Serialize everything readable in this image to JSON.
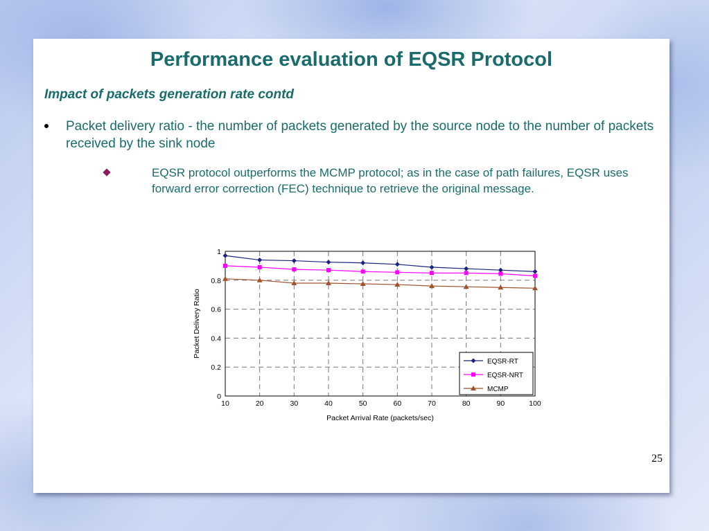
{
  "slide": {
    "title": "Performance evaluation of EQSR Protocol",
    "subtitle": "Impact of packets generation rate contd",
    "bullet": "Packet delivery ratio - the number of packets generated by the source node to the number of packets received by the sink node",
    "sub_bullet": "EQSR protocol outperforms the MCMP protocol; as in the case of path failures, EQSR uses forward error correction (FEC) technique to retrieve the original message.",
    "page_number": "25"
  },
  "chart_data": {
    "type": "line",
    "title": "",
    "xlabel": "Packet Arrival Rate (packets/sec)",
    "ylabel": "Packet Delivery Ratio",
    "x": [
      10,
      20,
      30,
      40,
      50,
      60,
      70,
      80,
      90,
      100
    ],
    "xlim": [
      10,
      100
    ],
    "ylim": [
      0,
      1
    ],
    "yticks": [
      "0",
      "0.2",
      "0.4",
      "0.6",
      "0.8",
      "1"
    ],
    "xticks": [
      "10",
      "20",
      "30",
      "40",
      "50",
      "60",
      "70",
      "80",
      "90",
      "100"
    ],
    "grid": true,
    "legend_position": "bottom-right",
    "series": [
      {
        "name": "EQSR-RT",
        "color": "#1a237e",
        "marker": "diamond",
        "values": [
          0.97,
          0.94,
          0.935,
          0.925,
          0.92,
          0.91,
          0.89,
          0.88,
          0.87,
          0.86
        ]
      },
      {
        "name": "EQSR-NRT",
        "color": "#ff00ff",
        "marker": "square",
        "values": [
          0.9,
          0.89,
          0.875,
          0.87,
          0.86,
          0.855,
          0.85,
          0.85,
          0.845,
          0.83
        ]
      },
      {
        "name": "MCMP",
        "color": "#a0522d",
        "marker": "triangle",
        "values": [
          0.81,
          0.8,
          0.78,
          0.78,
          0.775,
          0.77,
          0.76,
          0.755,
          0.75,
          0.745
        ]
      }
    ]
  }
}
